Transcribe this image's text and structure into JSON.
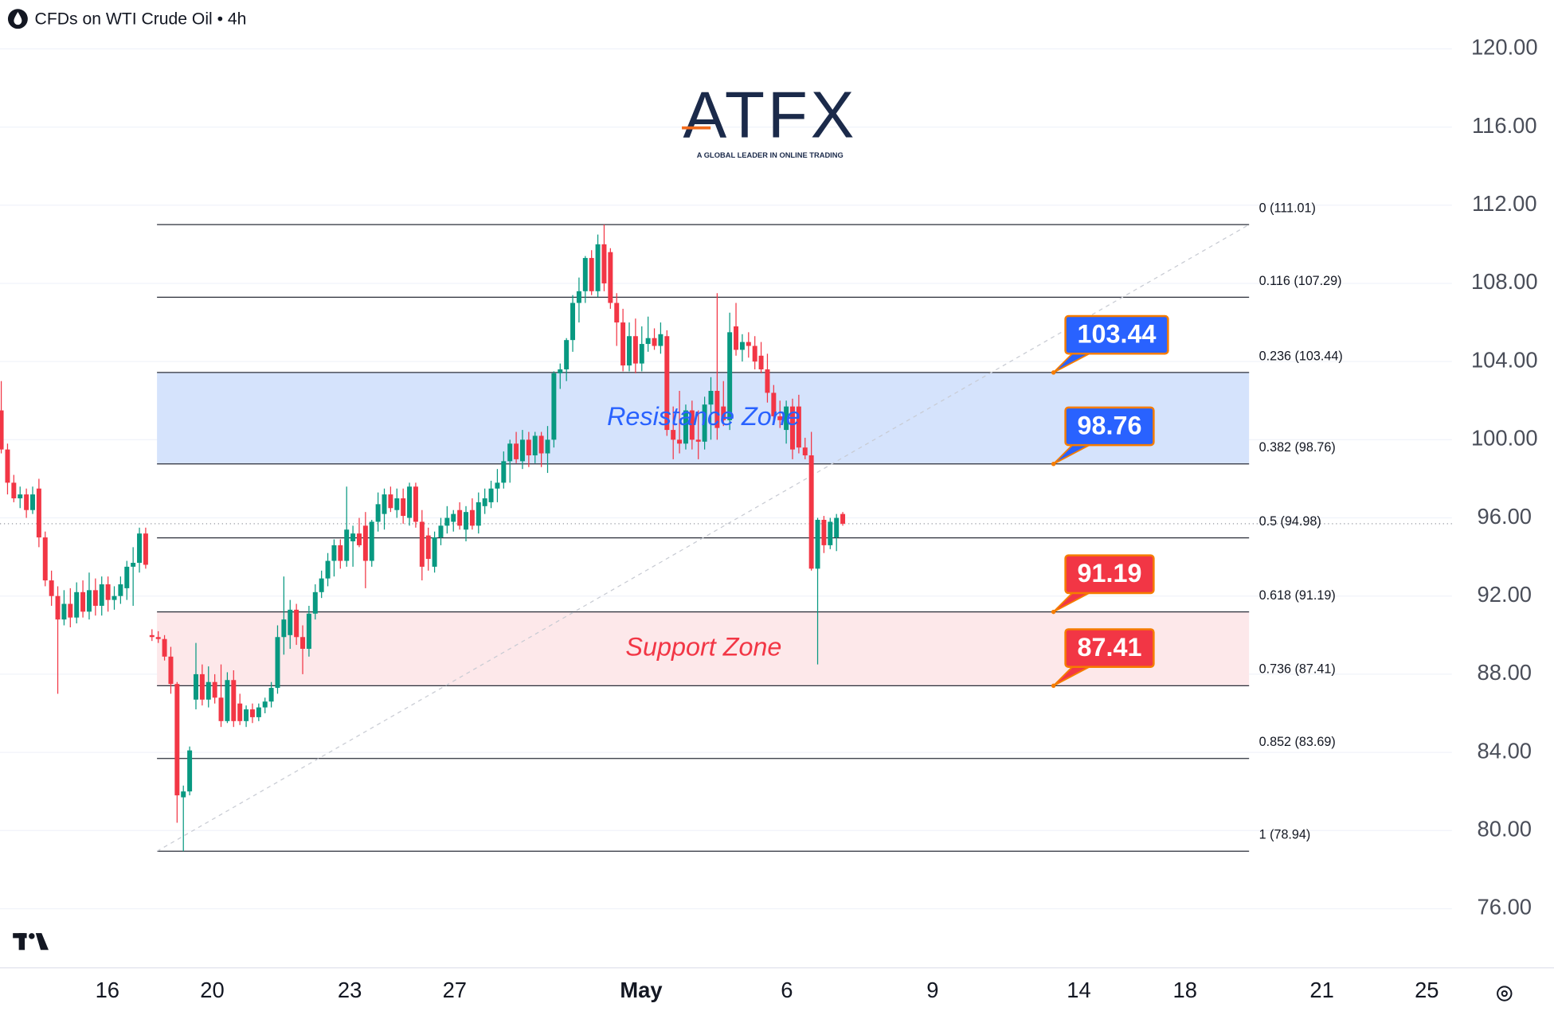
{
  "chart_data": {
    "type": "candlestick",
    "title": "CFDs on WTI Crude Oil • 4h",
    "logo": {
      "name": "ATFX",
      "tagline": "A GLOBAL LEADER IN ONLINE TRADING"
    },
    "up_color": "#089981",
    "down_color": "#f23645",
    "open": [
      101.5,
      99.5,
      97.8,
      97.0,
      97.2,
      96.4,
      97.5,
      95.0,
      92.8,
      92.0,
      90.8,
      91.6,
      90.9,
      92.2,
      91.2,
      92.3,
      91.5,
      92.6,
      91.8,
      92.0,
      92.4,
      93.5,
      93.7,
      95.2,
      90.0,
      89.9,
      89.8,
      88.9,
      87.5,
      81.7,
      82.0,
      86.7,
      88.0,
      86.7,
      87.6,
      86.8,
      85.6,
      87.7,
      86.5,
      85.6,
      86.2,
      85.8,
      86.3,
      86.6,
      87.3,
      89.9,
      90.0,
      91.3,
      89.9,
      89.3,
      91.1,
      92.2,
      92.9,
      93.8,
      94.6,
      93.8,
      94.8,
      95.2,
      95.6,
      93.8,
      95.8,
      96.2,
      97.2,
      96.4,
      97.0,
      96.0,
      97.6,
      95.8,
      95.1,
      93.5,
      95.0,
      95.6,
      95.8,
      96.4,
      95.4,
      96.4,
      95.6,
      96.6,
      96.8,
      97.5,
      97.8,
      98.9,
      99.8,
      98.9,
      100.0,
      99.2,
      100.2,
      99.3,
      100.0,
      103.4,
      103.6,
      105.1,
      107.0,
      107.6,
      109.3,
      107.6,
      110.0,
      109.6,
      107.0,
      106.0,
      103.8,
      105.3,
      103.9,
      104.9,
      105.2,
      104.8,
      105.3,
      100.5,
      100.0,
      99.8,
      101.5,
      100.0,
      99.9,
      101.8,
      102.5,
      101.7,
      101.0,
      105.8,
      104.6,
      105.0,
      104.8,
      104.3,
      103.6,
      102.4,
      101.2,
      100.5,
      101.7,
      101.7,
      99.6,
      99.2,
      93.4,
      95.9,
      94.6,
      95.0,
      96.2
    ],
    "high": [
      103.0,
      99.8,
      98.2,
      97.6,
      97.5,
      97.6,
      98.0,
      95.3,
      93.3,
      92.5,
      92.3,
      92.4,
      92.7,
      92.8,
      93.2,
      92.9,
      93.0,
      93.0,
      92.5,
      93.0,
      93.8,
      94.5,
      95.5,
      95.5,
      90.3,
      90.2,
      90.0,
      89.4,
      87.6,
      82.3,
      84.3,
      89.6,
      88.5,
      88.4,
      88.0,
      88.5,
      88.1,
      88.2,
      87.0,
      86.4,
      86.5,
      86.5,
      86.8,
      87.6,
      90.5,
      93.0,
      91.8,
      91.6,
      90.5,
      91.5,
      92.6,
      93.3,
      94.2,
      94.9,
      94.9,
      97.6,
      95.6,
      96.0,
      96.3,
      95.9,
      97.3,
      97.5,
      97.6,
      97.5,
      97.5,
      97.8,
      97.8,
      96.4,
      95.5,
      95.3,
      96.0,
      96.6,
      96.4,
      96.8,
      96.6,
      97.0,
      97.3,
      97.5,
      97.9,
      98.5,
      99.4,
      100.0,
      100.4,
      100.5,
      100.4,
      100.4,
      100.4,
      100.7,
      103.5,
      103.9,
      105.2,
      107.4,
      108.3,
      109.4,
      109.7,
      110.5,
      111.01,
      109.8,
      107.5,
      106.7,
      106.0,
      106.2,
      105.8,
      106.3,
      105.7,
      106.0,
      105.6,
      101.7,
      102.5,
      101.8,
      102.0,
      101.5,
      102.2,
      103.2,
      107.5,
      103.0,
      106.5,
      107.0,
      105.4,
      105.5,
      105.3,
      105.0,
      104.4,
      102.8,
      102.0,
      102.0,
      102.1,
      102.3,
      100.1,
      100.4,
      96.0,
      96.1,
      96.0,
      96.2,
      96.3
    ],
    "low": [
      99.3,
      97.2,
      96.8,
      96.5,
      96.0,
      96.2,
      94.5,
      92.5,
      91.5,
      87.0,
      90.5,
      90.4,
      90.6,
      90.9,
      90.8,
      91.0,
      91.0,
      91.2,
      91.3,
      91.6,
      91.8,
      91.5,
      93.2,
      93.4,
      89.7,
      89.6,
      88.7,
      87.0,
      80.4,
      78.94,
      81.8,
      86.2,
      86.4,
      86.3,
      86.5,
      85.3,
      85.5,
      85.3,
      85.4,
      85.3,
      85.5,
      85.6,
      86.0,
      86.3,
      87.0,
      89.0,
      89.3,
      89.5,
      88.0,
      88.9,
      90.8,
      91.9,
      92.5,
      93.0,
      93.4,
      93.5,
      93.5,
      94.5,
      92.4,
      93.5,
      95.3,
      95.4,
      96.3,
      96.0,
      95.7,
      95.6,
      95.5,
      92.8,
      93.3,
      93.2,
      94.6,
      95.2,
      95.3,
      95.4,
      94.8,
      95.4,
      95.2,
      96.2,
      96.5,
      96.8,
      97.5,
      97.8,
      98.8,
      98.5,
      98.6,
      98.8,
      98.6,
      98.3,
      99.6,
      102.6,
      103.0,
      104.5,
      106.0,
      107.0,
      107.4,
      107.3,
      107.6,
      106.7,
      104.8,
      103.5,
      103.5,
      103.4,
      103.5,
      104.5,
      104.6,
      104.4,
      100.2,
      99.0,
      99.3,
      99.5,
      99.5,
      99.0,
      99.5,
      100.0,
      100.0,
      100.7,
      100.5,
      104.3,
      104.0,
      104.2,
      103.6,
      103.4,
      101.9,
      100.9,
      100.6,
      99.8,
      99.0,
      99.3,
      99.0,
      93.3,
      88.5,
      94.2,
      94.4,
      94.3,
      95.6
    ],
    "close": [
      99.5,
      97.8,
      97.0,
      97.2,
      96.4,
      97.2,
      95.0,
      92.8,
      92.0,
      90.8,
      91.6,
      90.9,
      92.2,
      91.2,
      92.3,
      91.5,
      92.6,
      91.8,
      92.0,
      92.6,
      93.5,
      93.7,
      95.2,
      93.6,
      89.9,
      89.8,
      88.9,
      87.5,
      81.8,
      82.0,
      84.1,
      88.0,
      86.7,
      87.6,
      86.8,
      85.6,
      87.7,
      85.6,
      85.6,
      86.2,
      85.8,
      86.3,
      86.6,
      87.3,
      89.9,
      90.8,
      91.3,
      89.9,
      89.3,
      91.1,
      92.2,
      92.9,
      93.8,
      94.6,
      93.8,
      95.4,
      95.2,
      94.6,
      93.8,
      95.8,
      96.7,
      97.2,
      96.5,
      97.0,
      96.1,
      97.6,
      95.8,
      93.5,
      93.9,
      95.0,
      95.6,
      96.0,
      96.2,
      95.6,
      96.3,
      95.6,
      96.8,
      97.0,
      97.5,
      97.8,
      98.9,
      99.8,
      99.0,
      100.0,
      99.2,
      100.2,
      99.3,
      100.0,
      103.4,
      103.6,
      105.1,
      107.0,
      107.6,
      109.3,
      107.6,
      110.0,
      108.0,
      107.0,
      106.0,
      103.8,
      105.3,
      103.9,
      104.9,
      105.2,
      104.8,
      105.4,
      100.5,
      100.0,
      99.8,
      101.5,
      100.0,
      99.9,
      101.8,
      102.5,
      100.6,
      101.0,
      105.5,
      104.6,
      105.0,
      104.8,
      104.0,
      103.6,
      102.4,
      101.2,
      101.0,
      101.7,
      99.5,
      99.6,
      99.2,
      93.4,
      95.9,
      94.6,
      95.8,
      96.0,
      95.7
    ],
    "xlim": [
      -0.2,
      231
    ],
    "xticks": [
      {
        "value": 16.9,
        "label": "16"
      },
      {
        "value": 33.6,
        "label": "20"
      },
      {
        "value": 55.5,
        "label": "23"
      },
      {
        "value": 72.2,
        "label": "27"
      },
      {
        "value": 101.9,
        "label": "May",
        "bold": true
      },
      {
        "value": 125.1,
        "label": "6"
      },
      {
        "value": 148.3,
        "label": "9"
      },
      {
        "value": 171.6,
        "label": "14"
      },
      {
        "value": 188.5,
        "label": "18"
      },
      {
        "value": 210.3,
        "label": "21"
      },
      {
        "value": 227.0,
        "label": "25"
      }
    ],
    "ylim": [
      73.0,
      122.5
    ],
    "yticks": [
      {
        "value": 76,
        "label": "76.00"
      },
      {
        "value": 80,
        "label": "80.00"
      },
      {
        "value": 84,
        "label": "84.00"
      },
      {
        "value": 88,
        "label": "88.00"
      },
      {
        "value": 92,
        "label": "92.00"
      },
      {
        "value": 96,
        "label": "96.00"
      },
      {
        "value": 100,
        "label": "100.00"
      },
      {
        "value": 104,
        "label": "104.00"
      },
      {
        "value": 108,
        "label": "108.00"
      },
      {
        "value": 112,
        "label": "112.00"
      },
      {
        "value": 116,
        "label": "116.00"
      },
      {
        "value": 120,
        "label": "120.00"
      }
    ],
    "grid": true,
    "fib": {
      "x": [
        24.8,
        198.7
      ],
      "levels": [
        {
          "value": 111.01,
          "label": "0 (111.01)"
        },
        {
          "value": 107.29,
          "label": "0.116 (107.29)"
        },
        {
          "value": 103.44,
          "label": "0.236 (103.44)"
        },
        {
          "value": 98.76,
          "label": "0.382 (98.76)"
        },
        {
          "value": 94.98,
          "label": "0.5 (94.98)"
        },
        {
          "value": 91.19,
          "label": "0.618 (91.19)"
        },
        {
          "value": 87.41,
          "label": "0.736 (87.41)"
        },
        {
          "value": 83.69,
          "label": "0.852 (83.69)"
        },
        {
          "value": 78.94,
          "label": "1 (78.94)"
        }
      ]
    },
    "zones": [
      {
        "name": "Resistance Zone",
        "from": 98.76,
        "to": 103.44,
        "fill": "#d5e3fc",
        "color": "#2962ff"
      },
      {
        "name": "Support Zone",
        "from": 87.41,
        "to": 91.19,
        "fill": "#fde8ea",
        "color": "#f23645"
      }
    ],
    "callouts": [
      {
        "value": 103.44,
        "color": "#2962ff"
      },
      {
        "value": 98.76,
        "color": "#2962ff"
      },
      {
        "value": 91.19,
        "color": "#f23645"
      },
      {
        "value": 87.41,
        "color": "#f23645"
      }
    ]
  }
}
